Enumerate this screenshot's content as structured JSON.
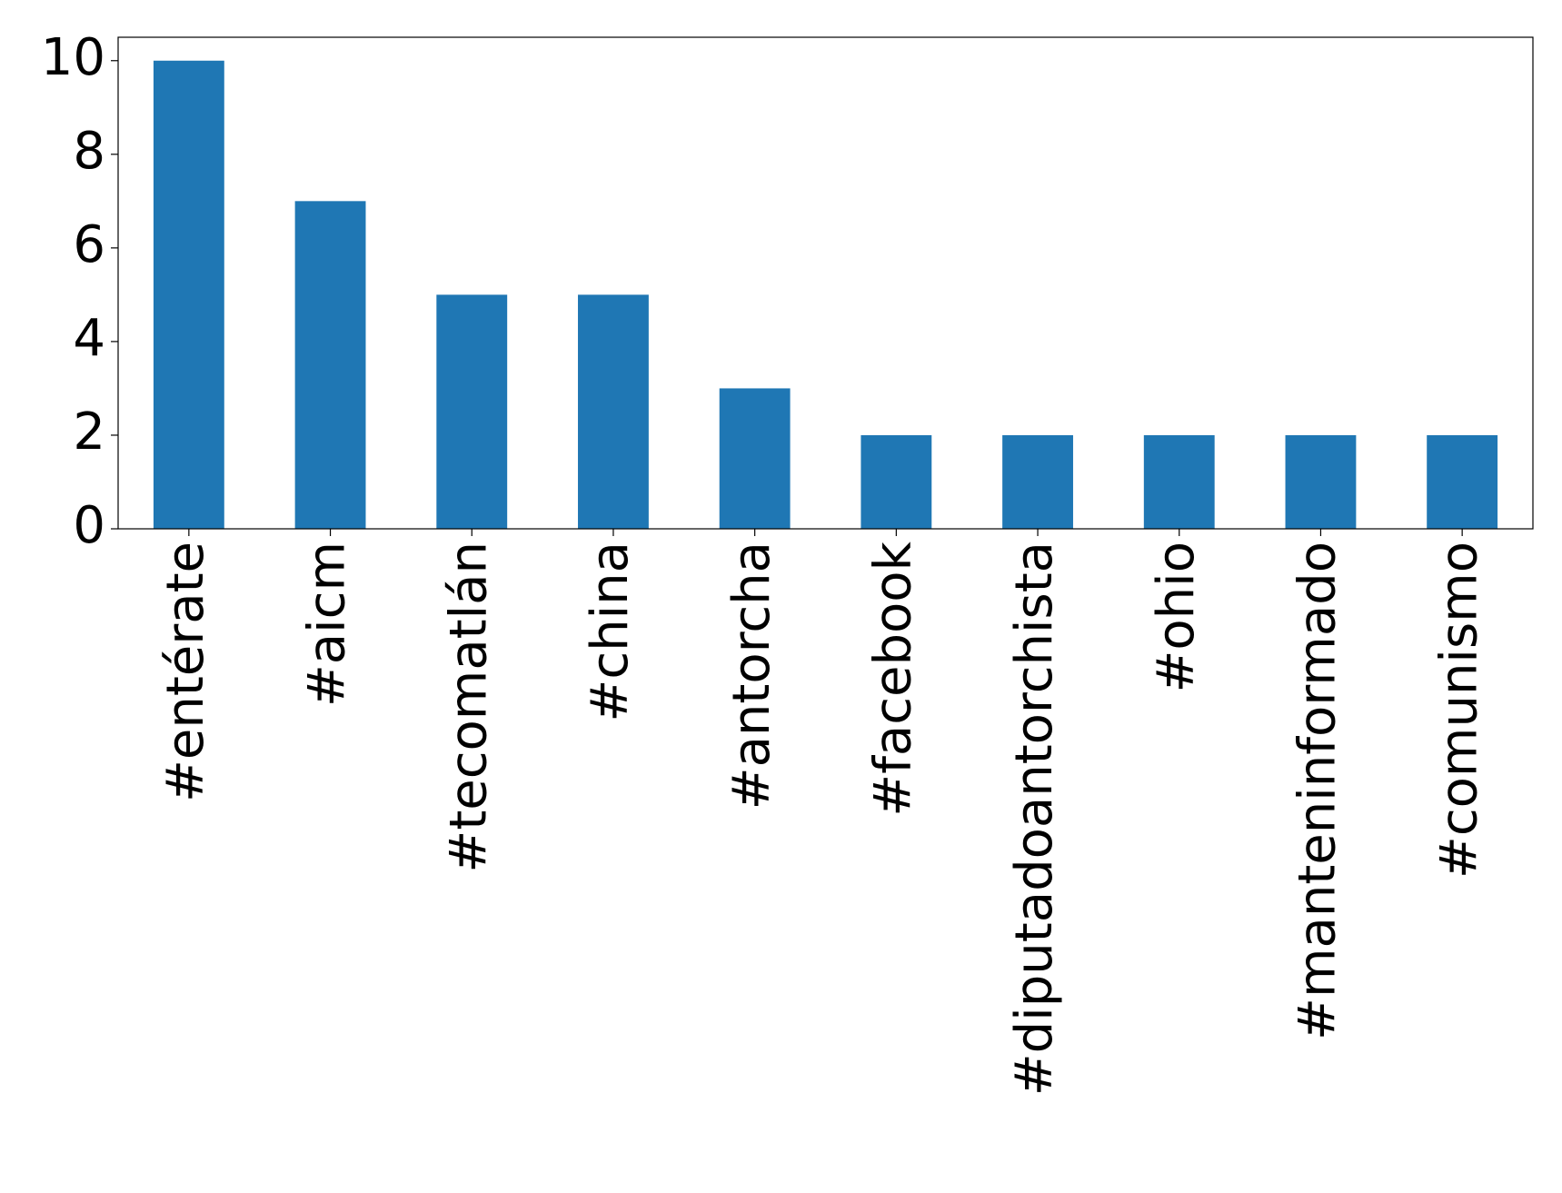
{
  "chart_data": {
    "type": "bar",
    "categories": [
      "#entérate",
      "#aicm",
      "#tecomatlán",
      "#china",
      "#antorcha",
      "#facebook",
      "#diputadoantorchista",
      "#ohio",
      "#manteninformado",
      "#comunismo"
    ],
    "values": [
      10,
      7,
      5,
      5,
      3,
      2,
      2,
      2,
      2,
      2
    ],
    "color": "#1f77b4",
    "ylim": [
      0,
      10.5
    ],
    "yticks": [
      0,
      2,
      4,
      6,
      8,
      10
    ],
    "grid": false
  }
}
